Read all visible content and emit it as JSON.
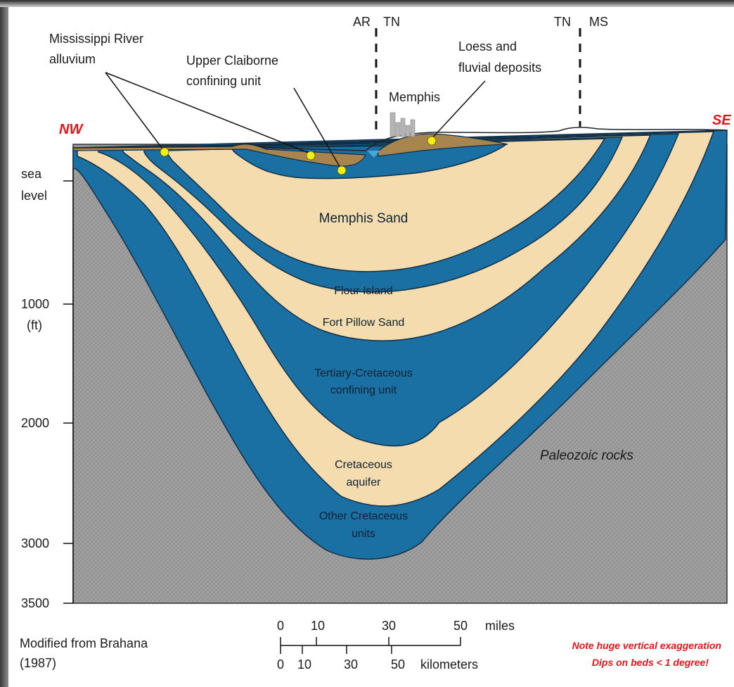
{
  "colors": {
    "confining_blue": "#1a6fa3",
    "aquifer_tan": "#f4dcae",
    "alluvium_brown": "#a8844f",
    "paleozoic_gray": "#9c9c9c",
    "marker_yellow": "#f2ef13",
    "direction_red": "#e8141a"
  },
  "directions": {
    "nw": "NW",
    "se": "SE"
  },
  "state_lines": [
    {
      "left": "AR",
      "right": "TN"
    },
    {
      "left": "TN",
      "right": "MS"
    }
  ],
  "callouts": {
    "alluvium": [
      "Mississippi River",
      "alluvium"
    ],
    "upper_claiborne": [
      "Upper Claiborne",
      "confining unit"
    ],
    "loess": [
      "Loess and",
      "fluvial deposits"
    ],
    "memphis": "Memphis"
  },
  "units": {
    "memphis_sand": "Memphis Sand",
    "flour_island": "Flour Island",
    "fort_pillow": "Fort Pillow Sand",
    "tertiary": [
      "Tertiary-Cretaceous",
      "confining unit"
    ],
    "cretaceous_aquifer": [
      "Cretaceous",
      "aquifer"
    ],
    "other_cretaceous": [
      "Other Cretaceous",
      "units"
    ],
    "paleozoic": "Paleozoic rocks"
  },
  "depth_axis": {
    "ticks": [
      {
        "label": [
          "sea",
          "level"
        ]
      },
      {
        "label": [
          "1000",
          "(ft)"
        ]
      },
      {
        "label": [
          "2000"
        ]
      },
      {
        "label": [
          "3000"
        ]
      },
      {
        "label": [
          "3500"
        ]
      }
    ]
  },
  "scale_bar": {
    "miles_ticks": [
      "0",
      "10",
      "30",
      "50"
    ],
    "miles_unit": "miles",
    "km_ticks": [
      "0",
      "10",
      "30",
      "50"
    ],
    "km_unit": "kilometers"
  },
  "credit": [
    "Modified from Brahana",
    "(1987)"
  ],
  "note": [
    "Note huge vertical exaggeration",
    "Dips on beds < 1 degree!"
  ]
}
